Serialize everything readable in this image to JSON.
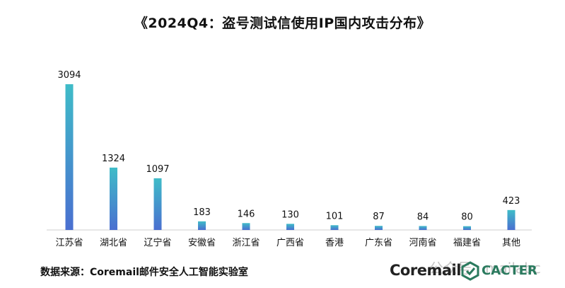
{
  "title": "《2024Q4：盗号测试信使用IP国内攻击分布》",
  "source": "数据来源：Coremail邮件安全人工智能实验室",
  "logos": {
    "coremail": "Coremail",
    "cacter": "CACTER"
  },
  "watermark": "公众号 · mailabc",
  "colors": {
    "bar_top": "#3fbcc8",
    "bar_bottom": "#4a6fd0",
    "baseline": "#cfcfcf",
    "brand_green": "#2a7a5e"
  },
  "chart_data": {
    "type": "bar",
    "categories": [
      "江苏省",
      "湖北省",
      "辽宁省",
      "安徽省",
      "浙江省",
      "广西省",
      "香港",
      "广东省",
      "河南省",
      "福建省",
      "其他"
    ],
    "values": [
      3094,
      1324,
      1097,
      183,
      146,
      130,
      101,
      87,
      84,
      80,
      423
    ],
    "ylim": [
      0,
      3094
    ],
    "grid": false,
    "legend": "none"
  }
}
